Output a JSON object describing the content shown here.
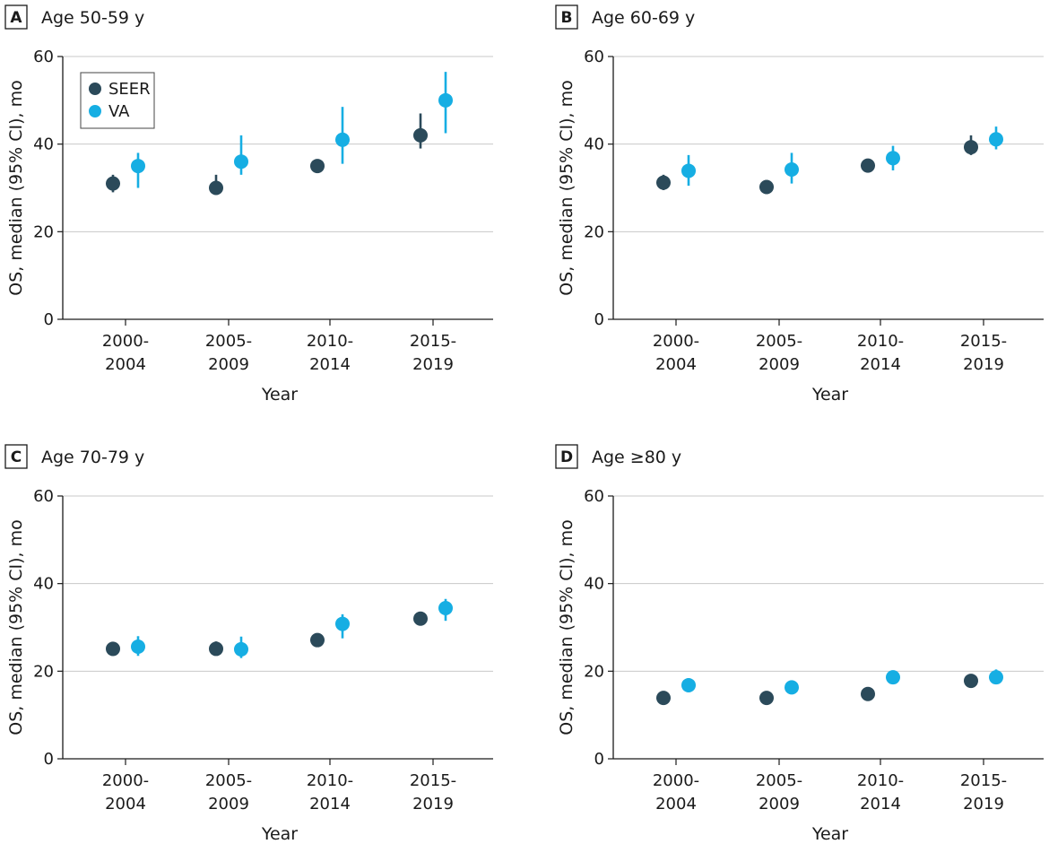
{
  "chart_data": [
    {
      "type": "scatter",
      "panel_letter": "A",
      "title": "Age 50-59 y",
      "xlabel": "Year",
      "ylabel": "OS, median (95% CI), mo",
      "ylim": [
        0,
        60
      ],
      "yticks": [
        0,
        20,
        40,
        60
      ],
      "grid": true,
      "categories": [
        [
          "2000-",
          "2004"
        ],
        [
          "2005-",
          "2009"
        ],
        [
          "2010-",
          "2014"
        ],
        [
          "2015-",
          "2019"
        ]
      ],
      "legend": {
        "placement": "top-left",
        "entries": [
          "SEER",
          "VA"
        ]
      },
      "series": [
        {
          "name": "SEER",
          "color": "#2b4a5a",
          "values": [
            31,
            30,
            35,
            42
          ],
          "ci_low": [
            29,
            29,
            34,
            39
          ],
          "ci_high": [
            33,
            33,
            36,
            47
          ]
        },
        {
          "name": "VA",
          "color": "#16aee3",
          "values": [
            35,
            36,
            41,
            50
          ],
          "ci_low": [
            30,
            33,
            35.5,
            42.5
          ],
          "ci_high": [
            38,
            42,
            48.5,
            56.5
          ]
        }
      ]
    },
    {
      "type": "scatter",
      "panel_letter": "B",
      "title": "Age 60-69 y",
      "xlabel": "Year",
      "ylabel": "OS, median (95% CI), mo",
      "ylim": [
        0,
        60
      ],
      "yticks": [
        0,
        20,
        40,
        60
      ],
      "grid": true,
      "categories": [
        [
          "2000-",
          "2004"
        ],
        [
          "2005-",
          "2009"
        ],
        [
          "2010-",
          "2014"
        ],
        [
          "2015-",
          "2019"
        ]
      ],
      "series": [
        {
          "name": "SEER",
          "color": "#2b4a5a",
          "values": [
            31.2,
            30.2,
            35.1,
            39.3
          ],
          "ci_low": [
            29.5,
            29.3,
            33.6,
            37.5
          ],
          "ci_high": [
            33,
            31.6,
            36.5,
            42
          ]
        },
        {
          "name": "VA",
          "color": "#16aee3",
          "values": [
            33.9,
            34.2,
            36.8,
            41.1
          ],
          "ci_low": [
            30.5,
            31,
            34,
            38.8
          ],
          "ci_high": [
            37.5,
            38,
            39.6,
            44
          ]
        }
      ]
    },
    {
      "type": "scatter",
      "panel_letter": "C",
      "title": "Age 70-79 y",
      "xlabel": "Year",
      "ylabel": "OS, median (95% CI), mo",
      "ylim": [
        0,
        60
      ],
      "yticks": [
        0,
        20,
        40,
        60
      ],
      "grid": true,
      "categories": [
        [
          "2000-",
          "2004"
        ],
        [
          "2005-",
          "2009"
        ],
        [
          "2010-",
          "2014"
        ],
        [
          "2015-",
          "2019"
        ]
      ],
      "series": [
        {
          "name": "SEER",
          "color": "#2b4a5a",
          "values": [
            25.1,
            25.1,
            27.1,
            32
          ],
          "ci_low": [
            23.5,
            24,
            26.5,
            30.5
          ],
          "ci_high": [
            26.5,
            26.8,
            27.8,
            33.5
          ]
        },
        {
          "name": "VA",
          "color": "#16aee3",
          "values": [
            25.6,
            25,
            30.8,
            34.4
          ],
          "ci_low": [
            23.5,
            23,
            27.5,
            31.5
          ],
          "ci_high": [
            28,
            27.9,
            33,
            36.5
          ]
        }
      ]
    },
    {
      "type": "scatter",
      "panel_letter": "D",
      "title": "Age ≥80 y",
      "xlabel": "Year",
      "ylabel": "OS, median (95% CI), mo",
      "ylim": [
        0,
        60
      ],
      "yticks": [
        0,
        20,
        40,
        60
      ],
      "grid": true,
      "categories": [
        [
          "2000-",
          "2004"
        ],
        [
          "2005-",
          "2009"
        ],
        [
          "2010-",
          "2014"
        ],
        [
          "2015-",
          "2019"
        ]
      ],
      "series": [
        {
          "name": "SEER",
          "color": "#2b4a5a",
          "values": [
            13.9,
            13.9,
            14.8,
            17.8
          ],
          "ci_low": [
            13.4,
            13.4,
            14.2,
            17.2
          ],
          "ci_high": [
            14.4,
            14.4,
            15.4,
            18.6
          ]
        },
        {
          "name": "VA",
          "color": "#16aee3",
          "values": [
            16.8,
            16.3,
            18.6,
            18.6
          ],
          "ci_low": [
            15.5,
            15,
            17.5,
            17
          ],
          "ci_high": [
            18.4,
            17.8,
            19.8,
            20.4
          ]
        }
      ]
    }
  ]
}
